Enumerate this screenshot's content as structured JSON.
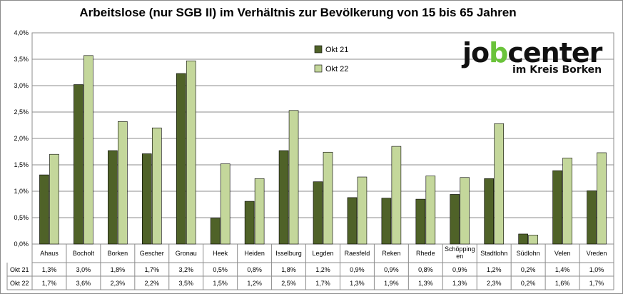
{
  "chart_data": {
    "type": "bar",
    "title": "Arbeitslose (nur SGB II) im Verhältnis zur Bevölkerung von 15 bis 65 Jahren",
    "ylim": [
      0,
      4.0
    ],
    "yticks": [
      "0,0%",
      "0,5%",
      "1,0%",
      "1,5%",
      "2,0%",
      "2,5%",
      "3,0%",
      "3,5%",
      "4,0%"
    ],
    "grid": true,
    "legend_position": "top-right",
    "categories": [
      "Ahaus",
      "Bocholt",
      "Borken",
      "Gescher",
      "Gronau",
      "Heek",
      "Heiden",
      "Isselburg",
      "Legden",
      "Raesfeld",
      "Reken",
      "Rhede",
      "Schöpping\nen",
      "Stadtlohn",
      "Südlohn",
      "Velen",
      "Vreden"
    ],
    "series": [
      {
        "name": "Okt 21",
        "color": "#4f6228",
        "values": [
          1.31,
          3.02,
          1.77,
          1.71,
          3.23,
          0.49,
          0.81,
          1.77,
          1.18,
          0.88,
          0.87,
          0.85,
          0.94,
          1.24,
          0.19,
          1.39,
          1.01
        ],
        "labels": [
          "1,3%",
          "3,0%",
          "1,8%",
          "1,7%",
          "3,2%",
          "0,5%",
          "0,8%",
          "1,8%",
          "1,2%",
          "0,9%",
          "0,9%",
          "0,8%",
          "0,9%",
          "1,2%",
          "0,2%",
          "1,4%",
          "1,0%"
        ]
      },
      {
        "name": "Okt 22",
        "color": "#c4d79b",
        "values": [
          1.7,
          3.57,
          2.32,
          2.2,
          3.47,
          1.52,
          1.24,
          2.53,
          1.74,
          1.27,
          1.85,
          1.29,
          1.26,
          2.28,
          0.17,
          1.63,
          1.73
        ],
        "labels": [
          "1,7%",
          "3,6%",
          "2,3%",
          "2,2%",
          "3,5%",
          "1,5%",
          "1,2%",
          "2,5%",
          "1,7%",
          "1,3%",
          "1,9%",
          "1,3%",
          "1,3%",
          "2,3%",
          "0,2%",
          "1,6%",
          "1,7%"
        ]
      }
    ]
  },
  "logo": {
    "word_start": "jo",
    "word_highlight": "b",
    "word_end": "center",
    "subtitle": "im Kreis Borken",
    "highlight_color": "#6ac33a"
  }
}
